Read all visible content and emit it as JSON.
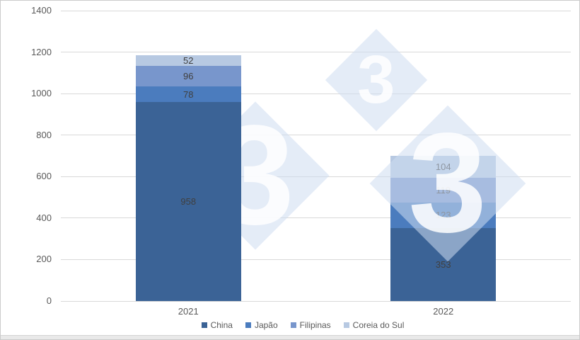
{
  "canvas": {
    "background": "#FFFFFF",
    "border_color": "#CBCBCB"
  },
  "watermark": {
    "glyph": "3",
    "diamond_color": "rgba(205,220,240,0.55)",
    "glyph_color": "rgba(255,255,255,0.85)"
  },
  "chart_data": {
    "type": "bar",
    "stacked": true,
    "title": "",
    "xlabel": "",
    "ylabel": "",
    "categories": [
      "2021",
      "2022"
    ],
    "series": [
      {
        "name": "China",
        "color": "#3B6396",
        "values": [
          958,
          353
        ]
      },
      {
        "name": "Japão",
        "color": "#4B7CBE",
        "values": [
          78,
          123
        ]
      },
      {
        "name": "Filipinas",
        "color": "#7896CC",
        "values": [
          96,
          119
        ]
      },
      {
        "name": "Coreia do Sul",
        "color": "#B7C9E2",
        "values": [
          52,
          104
        ]
      }
    ],
    "ylim": [
      0,
      1400
    ],
    "yticks": [
      "0",
      "200",
      "400",
      "600",
      "800",
      "1000",
      "1200",
      "1400"
    ],
    "grid": true,
    "legend_position": "bottom",
    "data_labels": true,
    "label_color": "#404040",
    "axis_text_color": "#595959",
    "gridline_color": "#D9D9D9"
  }
}
